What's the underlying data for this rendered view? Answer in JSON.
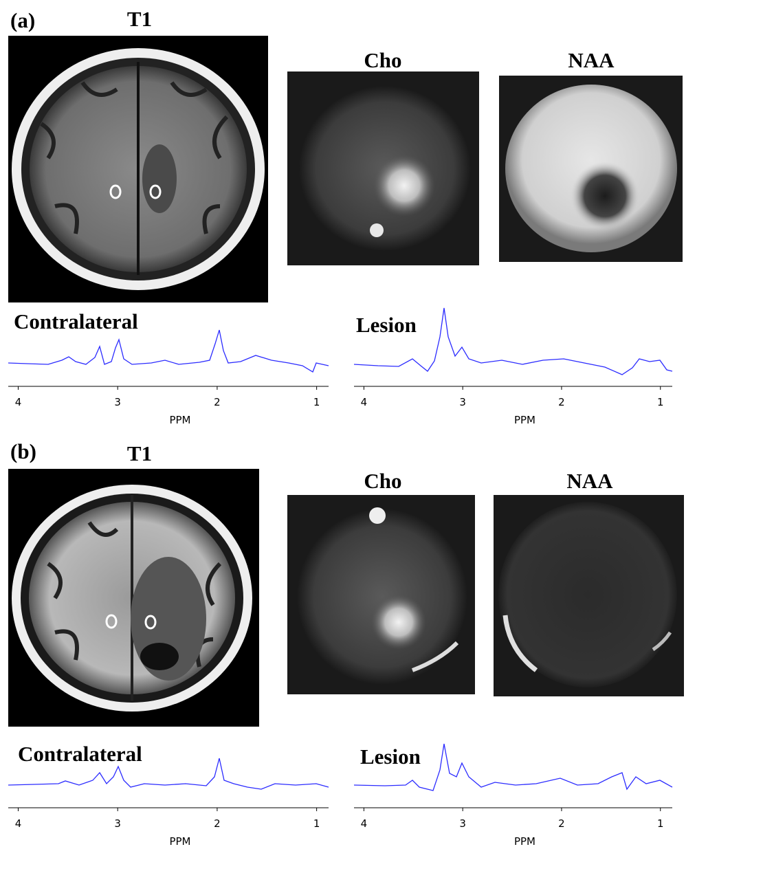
{
  "panels": [
    {
      "label": "(a)",
      "t1_title": "T1",
      "maps": [
        {
          "title": "Cho"
        },
        {
          "title": "NAA"
        }
      ],
      "spectra": [
        {
          "title": "Contralateral",
          "xlabel": "PPM",
          "xlim": [
            4.1,
            0.88
          ],
          "xticks": [
            4,
            3,
            2,
            1
          ]
        },
        {
          "title": "Lesion",
          "xlabel": "PPM",
          "xlim": [
            4.1,
            0.88
          ],
          "xticks": [
            4,
            3,
            2,
            1
          ]
        }
      ]
    },
    {
      "label": "(b)",
      "t1_title": "T1",
      "maps": [
        {
          "title": "Cho"
        },
        {
          "title": "NAA"
        }
      ],
      "spectra": [
        {
          "title": "Contralateral",
          "xlabel": "PPM",
          "xlim": [
            4.1,
            0.88
          ],
          "xticks": [
            4,
            3,
            2,
            1
          ]
        },
        {
          "title": "Lesion",
          "xlabel": "PPM",
          "xlim": [
            4.1,
            0.88
          ],
          "xticks": [
            4,
            3,
            2,
            1
          ]
        }
      ]
    }
  ]
}
